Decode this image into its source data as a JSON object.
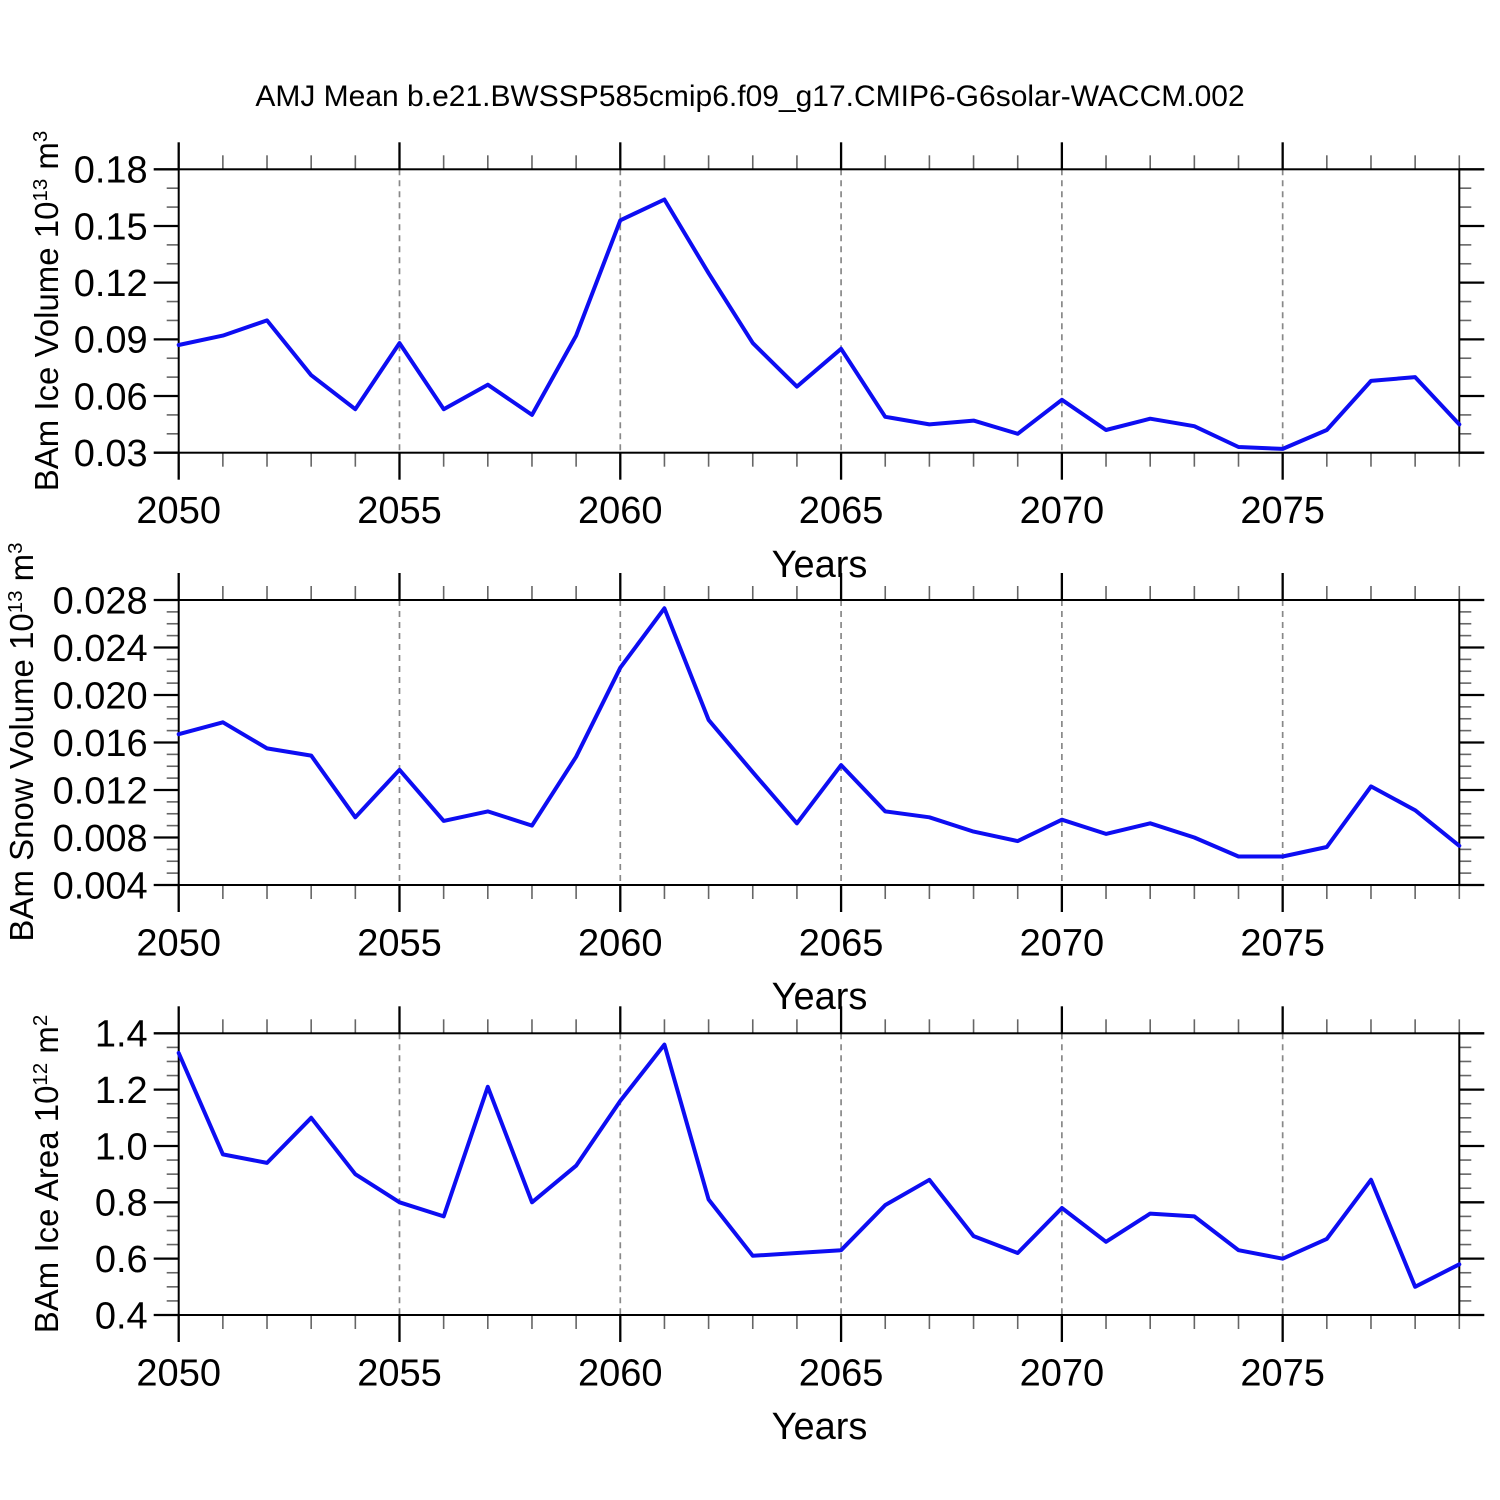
{
  "title": "AMJ Mean b.e21.BWSSP585cmip6.f09_g17.CMIP6-G6solar-WACCM.002",
  "colors": {
    "line": "#0d0df2",
    "grid": "#888888",
    "axis": "#000000",
    "minor_tick": "#666666",
    "background": "#ffffff"
  },
  "chart_data": [
    {
      "type": "line",
      "name": "ice-volume",
      "ylabel": "BAm Ice Volume 10^13 m^3",
      "ylabel_parts": {
        "pre": "BAm Ice Volume 10",
        "sup1": "13",
        "mid": " m",
        "sup2": "3"
      },
      "xlabel": "Years",
      "x": [
        2050,
        2051,
        2052,
        2053,
        2054,
        2055,
        2056,
        2057,
        2058,
        2059,
        2060,
        2061,
        2062,
        2063,
        2064,
        2065,
        2066,
        2067,
        2068,
        2069,
        2070,
        2071,
        2072,
        2073,
        2074,
        2075,
        2076,
        2077,
        2078,
        2079
      ],
      "values": [
        0.087,
        0.092,
        0.1,
        0.071,
        0.053,
        0.088,
        0.053,
        0.066,
        0.05,
        0.092,
        0.153,
        0.164,
        0.125,
        0.088,
        0.065,
        0.085,
        0.049,
        0.045,
        0.047,
        0.04,
        0.058,
        0.042,
        0.048,
        0.044,
        0.033,
        0.032,
        0.042,
        0.068,
        0.07,
        0.045
      ],
      "ylim": [
        0.03,
        0.18
      ],
      "yticks": [
        0.03,
        0.06,
        0.09,
        0.12,
        0.15,
        0.18
      ],
      "ytick_labels": [
        "0.03",
        "0.06",
        "0.09",
        "0.12",
        "0.15",
        "0.18"
      ],
      "yminor_step": 0.01,
      "xlim": [
        2050,
        2079
      ],
      "xticks": [
        2050,
        2055,
        2060,
        2065,
        2070,
        2075
      ],
      "xtick_labels": [
        "2050",
        "2055",
        "2060",
        "2065",
        "2070",
        "2075"
      ],
      "xminor_step": 1,
      "grid_years": [
        2055,
        2060,
        2065,
        2070,
        2075
      ],
      "grid_on": true,
      "legend": "none"
    },
    {
      "type": "line",
      "name": "snow-volume",
      "ylabel": "BAm Snow Volume 10^13 m^3",
      "ylabel_parts": {
        "pre": "BAm Snow Volume 10",
        "sup1": "13",
        "mid": " m",
        "sup2": "3"
      },
      "xlabel": "Years",
      "x": [
        2050,
        2051,
        2052,
        2053,
        2054,
        2055,
        2056,
        2057,
        2058,
        2059,
        2060,
        2061,
        2062,
        2063,
        2064,
        2065,
        2066,
        2067,
        2068,
        2069,
        2070,
        2071,
        2072,
        2073,
        2074,
        2075,
        2076,
        2077,
        2078,
        2079
      ],
      "values": [
        0.0167,
        0.0177,
        0.0155,
        0.0149,
        0.0097,
        0.0137,
        0.0094,
        0.0102,
        0.009,
        0.0148,
        0.0223,
        0.0273,
        0.0179,
        0.0135,
        0.0092,
        0.0141,
        0.0102,
        0.0097,
        0.0085,
        0.0077,
        0.0095,
        0.0083,
        0.0092,
        0.008,
        0.0064,
        0.0064,
        0.0072,
        0.0123,
        0.0103,
        0.0073
      ],
      "ylim": [
        0.004,
        0.028
      ],
      "yticks": [
        0.004,
        0.008,
        0.012,
        0.016,
        0.02,
        0.024,
        0.028
      ],
      "ytick_labels": [
        "0.004",
        "0.008",
        "0.012",
        "0.016",
        "0.020",
        "0.024",
        "0.028"
      ],
      "yminor_step": 0.001,
      "xlim": [
        2050,
        2079
      ],
      "xticks": [
        2050,
        2055,
        2060,
        2065,
        2070,
        2075
      ],
      "xtick_labels": [
        "2050",
        "2055",
        "2060",
        "2065",
        "2070",
        "2075"
      ],
      "xminor_step": 1,
      "grid_years": [
        2055,
        2060,
        2065,
        2070,
        2075
      ],
      "grid_on": true,
      "legend": "none"
    },
    {
      "type": "line",
      "name": "ice-area",
      "ylabel": "BAm Ice Area 10^12 m^2",
      "ylabel_parts": {
        "pre": "BAm Ice Area 10",
        "sup1": "12",
        "mid": " m",
        "sup2": "2"
      },
      "xlabel": "Years",
      "x": [
        2050,
        2051,
        2052,
        2053,
        2054,
        2055,
        2056,
        2057,
        2058,
        2059,
        2060,
        2061,
        2062,
        2063,
        2064,
        2065,
        2066,
        2067,
        2068,
        2069,
        2070,
        2071,
        2072,
        2073,
        2074,
        2075,
        2076,
        2077,
        2078,
        2079
      ],
      "values": [
        1.33,
        0.97,
        0.94,
        1.1,
        0.9,
        0.8,
        0.75,
        1.21,
        0.8,
        0.93,
        1.16,
        1.36,
        0.81,
        0.61,
        0.62,
        0.63,
        0.79,
        0.88,
        0.68,
        0.62,
        0.78,
        0.66,
        0.76,
        0.75,
        0.63,
        0.6,
        0.67,
        0.88,
        0.5,
        0.58
      ],
      "ylim": [
        0.4,
        1.4
      ],
      "yticks": [
        0.4,
        0.6,
        0.8,
        1.0,
        1.2,
        1.4
      ],
      "ytick_labels": [
        "0.4",
        "0.6",
        "0.8",
        "1.0",
        "1.2",
        "1.4"
      ],
      "yminor_step": 0.05,
      "xlim": [
        2050,
        2079
      ],
      "xticks": [
        2050,
        2055,
        2060,
        2065,
        2070,
        2075
      ],
      "xtick_labels": [
        "2050",
        "2055",
        "2060",
        "2065",
        "2070",
        "2075"
      ],
      "xminor_step": 1,
      "grid_years": [
        2055,
        2060,
        2065,
        2070,
        2075
      ],
      "grid_on": true,
      "legend": "none"
    }
  ]
}
